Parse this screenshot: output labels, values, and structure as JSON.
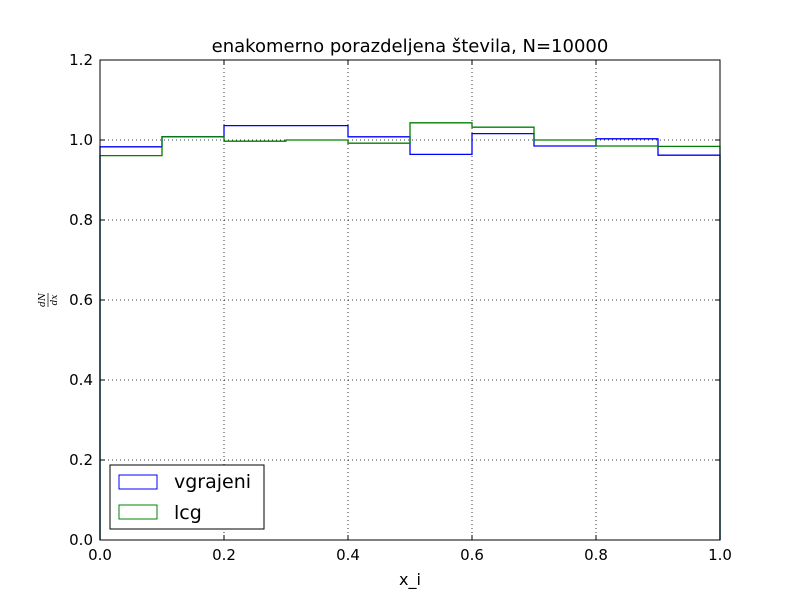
{
  "chart_data": {
    "type": "step",
    "title": "enakomerno porazdeljena števila, N=10000",
    "xlabel": "x_i",
    "ylabel": {
      "numerator": "dN",
      "denominator": "dx"
    },
    "xlim": [
      0.0,
      1.0
    ],
    "ylim": [
      0.0,
      1.2
    ],
    "xticks": [
      "0.0",
      "0.2",
      "0.4",
      "0.6",
      "0.8",
      "1.0"
    ],
    "yticks": [
      "0.0",
      "0.2",
      "0.4",
      "0.6",
      "0.8",
      "1.0",
      "1.2"
    ],
    "grid": true,
    "legend_position": "lower-left",
    "bin_edges": [
      0.0,
      0.1,
      0.2,
      0.3,
      0.4,
      0.5,
      0.6,
      0.7,
      0.8,
      0.9,
      1.0
    ],
    "series": [
      {
        "name": "vgrajeni",
        "color": "#0000ff",
        "values": [
          0.983,
          1.008,
          1.036,
          1.036,
          1.008,
          0.964,
          1.016,
          0.985,
          1.003,
          0.962
        ]
      },
      {
        "name": "lcg",
        "color": "#008000",
        "values": [
          0.961,
          1.008,
          0.997,
          1.0,
          0.992,
          1.043,
          1.032,
          1.0,
          0.985,
          0.984
        ]
      }
    ]
  }
}
